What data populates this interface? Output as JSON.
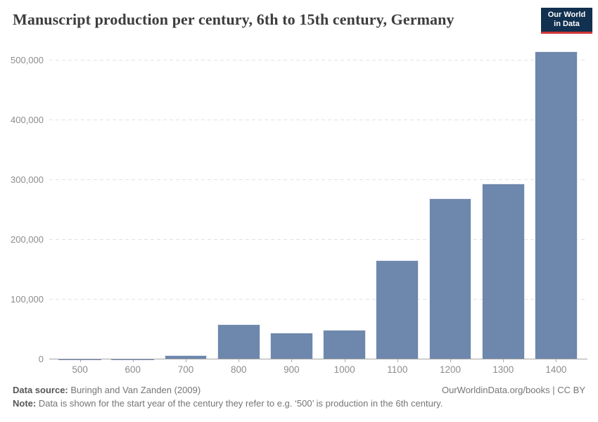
{
  "header": {
    "title": "Manuscript production per century, 6th to 15th century, Germany",
    "logo": {
      "line1": "Our World",
      "line2": "in Data"
    }
  },
  "chart_data": {
    "type": "bar",
    "title": "Manuscript production per century, 6th to 15th century, Germany",
    "categories": [
      "500",
      "600",
      "700",
      "800",
      "900",
      "1000",
      "1100",
      "1200",
      "1300",
      "1400"
    ],
    "values": [
      200,
      500,
      7000,
      59000,
      45000,
      50000,
      166000,
      270000,
      294000,
      515000
    ],
    "xlabel": "",
    "ylabel": "",
    "ylim": [
      0,
      500000
    ],
    "y_ticks": [
      0,
      100000,
      200000,
      300000,
      400000,
      500000
    ],
    "y_tick_labels": [
      "0",
      "100,000",
      "200,000",
      "300,000",
      "400,000",
      "500,000"
    ],
    "grid": "horizontal-dashed",
    "legend": "none",
    "bar_color": "#6e87ad"
  },
  "footer": {
    "source_label": "Data source:",
    "source_text": " Buringh and Van Zanden (2009)",
    "attribution": "OurWorldinData.org/books | CC BY",
    "note_label": "Note:",
    "note_text": " Data is shown for the start year of the century they refer to e.g. ‘500’ is production in the 6th century."
  }
}
